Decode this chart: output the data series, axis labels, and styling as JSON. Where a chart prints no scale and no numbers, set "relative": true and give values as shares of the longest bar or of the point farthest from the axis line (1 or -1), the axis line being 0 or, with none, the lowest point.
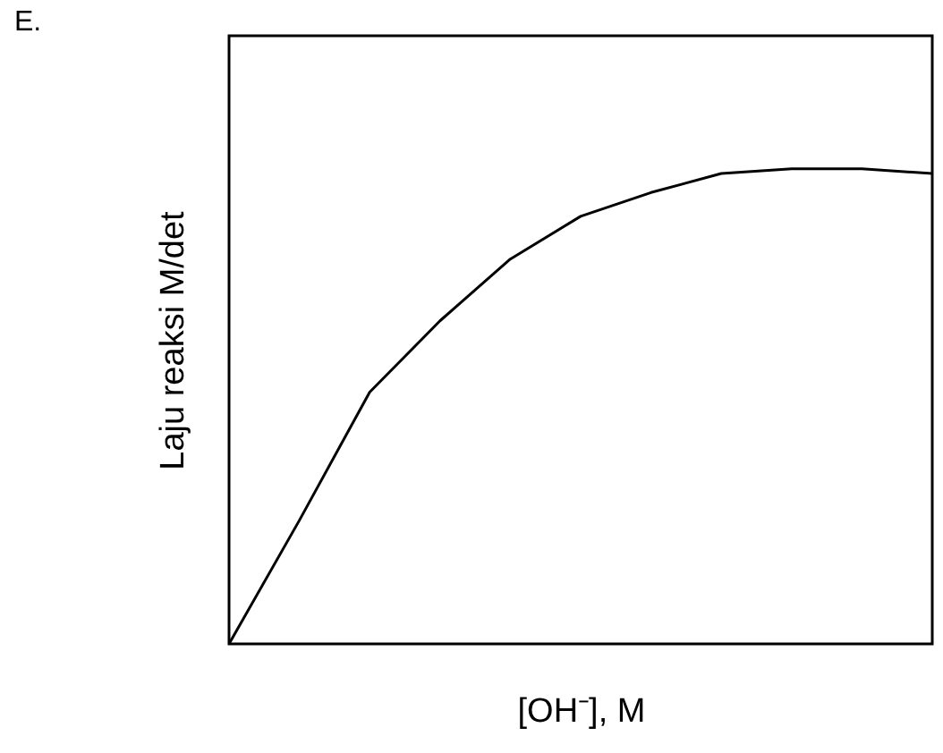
{
  "chart_data": {
    "type": "line",
    "relative": true,
    "annotations": [
      "E."
    ],
    "xlabel": "[OH⁻], M",
    "ylabel": "Laju reaksi M/det",
    "categories": [
      null,
      null,
      null,
      null,
      null,
      null,
      null,
      null,
      null,
      null,
      null
    ],
    "series": [
      {
        "color": "#000000",
        "values": [
          0,
          0.26,
          0.53,
          0.68,
          0.81,
          0.9,
          0.95,
          0.99,
          1,
          1,
          0.99
        ]
      }
    ],
    "grid": false,
    "legend": false,
    "marker": "none",
    "line_style": "solid"
  }
}
